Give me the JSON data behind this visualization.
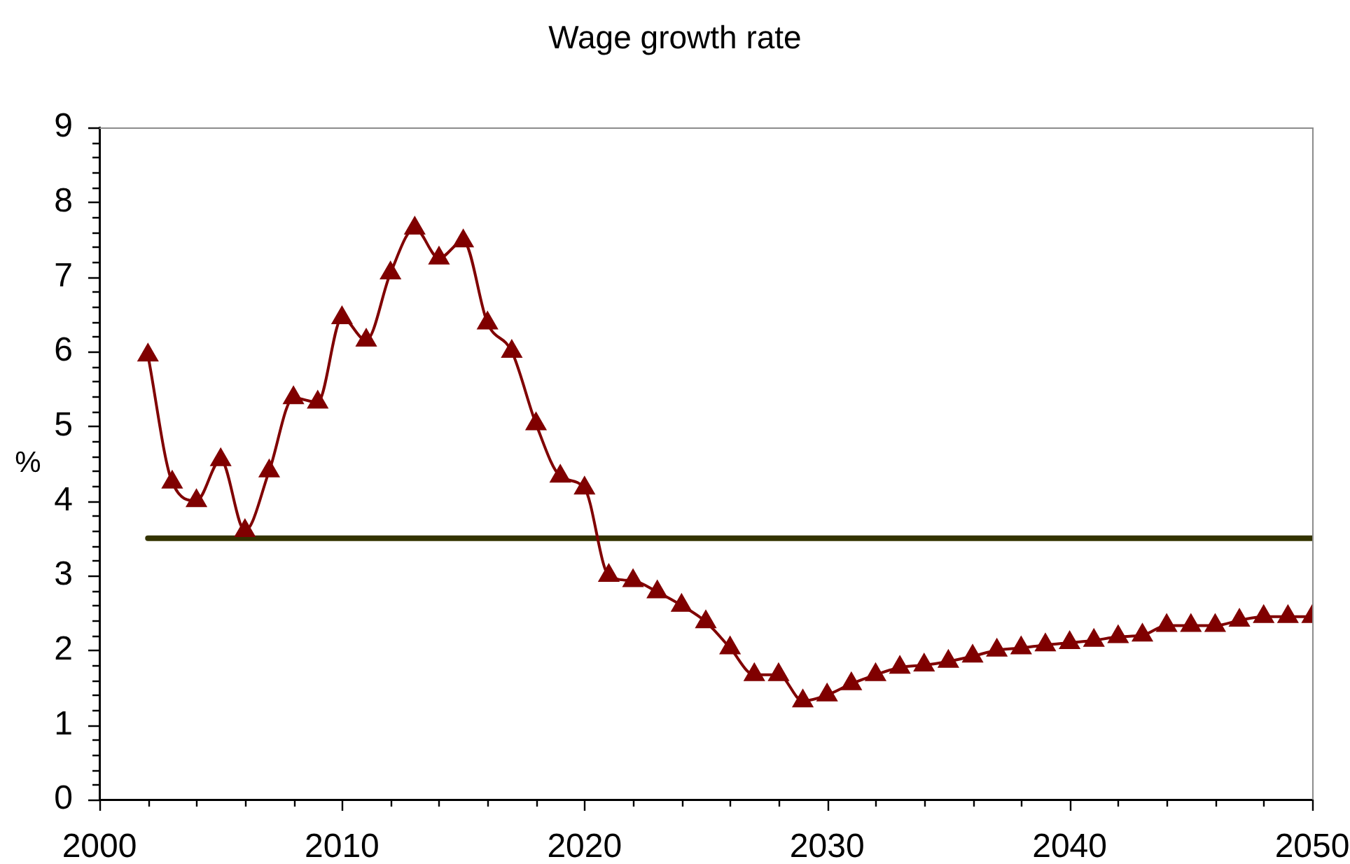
{
  "chart_data": {
    "type": "line",
    "title": "Wage growth rate",
    "ylabel": "%",
    "x": [
      2002,
      2003,
      2004,
      2005,
      2006,
      2007,
      2008,
      2009,
      2010,
      2011,
      2012,
      2013,
      2014,
      2015,
      2016,
      2017,
      2018,
      2019,
      2020,
      2021,
      2022,
      2023,
      2024,
      2025,
      2026,
      2027,
      2028,
      2029,
      2030,
      2031,
      2032,
      2033,
      2034,
      2035,
      2036,
      2037,
      2038,
      2039,
      2040,
      2041,
      2042,
      2043,
      2044,
      2045,
      2046,
      2047,
      2048,
      2049,
      2050
    ],
    "series": [
      {
        "color": "#800000",
        "values": [
          5.95,
          4.25,
          4.0,
          4.55,
          3.6,
          4.4,
          5.38,
          5.32,
          6.45,
          6.15,
          7.05,
          7.65,
          7.25,
          7.48,
          6.38,
          6.0,
          5.03,
          4.33,
          4.17,
          3.0,
          2.93,
          2.78,
          2.6,
          2.38,
          2.03,
          1.67,
          1.67,
          1.32,
          1.4,
          1.55,
          1.67,
          1.77,
          1.8,
          1.85,
          1.92,
          2.0,
          2.03,
          2.07,
          2.1,
          2.13,
          2.18,
          2.2,
          2.33,
          2.33,
          2.33,
          2.4,
          2.45,
          2.45,
          2.45
        ]
      },
      {
        "type": "line",
        "x": [
          2002,
          2050
        ],
        "values": [
          3.5,
          3.5
        ],
        "color": "#333300",
        "marker": "none"
      }
    ],
    "xlim": [
      2000,
      2050
    ],
    "xticks": [
      2000,
      {
        "value": 2002,
        "label": null
      },
      {
        "value": 2004,
        "label": null
      },
      {
        "value": 2006,
        "label": null
      },
      {
        "value": 2008,
        "label": null
      },
      2010,
      {
        "value": 2012,
        "label": null
      },
      {
        "value": 2014,
        "label": null
      },
      {
        "value": 2016,
        "label": null
      },
      {
        "value": 2018,
        "label": null
      },
      2020,
      {
        "value": 2022,
        "label": null
      },
      {
        "value": 2024,
        "label": null
      },
      {
        "value": 2026,
        "label": null
      },
      {
        "value": 2028,
        "label": null
      },
      2030,
      {
        "value": 2032,
        "label": null
      },
      {
        "value": 2034,
        "label": null
      },
      {
        "value": 2036,
        "label": null
      },
      {
        "value": 2038,
        "label": null
      },
      2040,
      {
        "value": 2042,
        "label": null
      },
      {
        "value": 2044,
        "label": null
      },
      {
        "value": 2046,
        "label": null
      },
      {
        "value": 2048,
        "label": null
      },
      2050
    ],
    "ylim": [
      0,
      9
    ],
    "yticks": [
      0,
      {
        "value": 0.2,
        "label": null
      },
      {
        "value": 0.4,
        "label": null
      },
      {
        "value": 0.6,
        "label": null
      },
      {
        "value": 0.8,
        "label": null
      },
      1,
      {
        "value": 1.2,
        "label": null
      },
      {
        "value": 1.4,
        "label": null
      },
      {
        "value": 1.6,
        "label": null
      },
      {
        "value": 1.8,
        "label": null
      },
      2,
      {
        "value": 2.2,
        "label": null
      },
      {
        "value": 2.4,
        "label": null
      },
      {
        "value": 2.6,
        "label": null
      },
      {
        "value": 2.8,
        "label": null
      },
      3,
      {
        "value": 3.2,
        "label": null
      },
      {
        "value": 3.4,
        "label": null
      },
      {
        "value": 3.6,
        "label": null
      },
      {
        "value": 3.8,
        "label": null
      },
      4,
      {
        "value": 4.2,
        "label": null
      },
      {
        "value": 4.4,
        "label": null
      },
      {
        "value": 4.6,
        "label": null
      },
      {
        "value": 4.8,
        "label": null
      },
      5,
      {
        "value": 5.2,
        "label": null
      },
      {
        "value": 5.4,
        "label": null
      },
      {
        "value": 5.6,
        "label": null
      },
      {
        "value": 5.8,
        "label": null
      },
      6,
      {
        "value": 6.2,
        "label": null
      },
      {
        "value": 6.4,
        "label": null
      },
      {
        "value": 6.6,
        "label": null
      },
      {
        "value": 6.8,
        "label": null
      },
      7,
      {
        "value": 7.2,
        "label": null
      },
      {
        "value": 7.4,
        "label": null
      },
      {
        "value": 7.6,
        "label": null
      },
      {
        "value": 7.8,
        "label": null
      },
      8,
      {
        "value": 8.2,
        "label": null
      },
      {
        "value": 8.4,
        "label": null
      },
      {
        "value": 8.6,
        "label": null
      },
      {
        "value": 8.8,
        "label": null
      },
      9
    ],
    "grid": false,
    "legend": false,
    "marker": "triangle",
    "line_style": "solid"
  }
}
